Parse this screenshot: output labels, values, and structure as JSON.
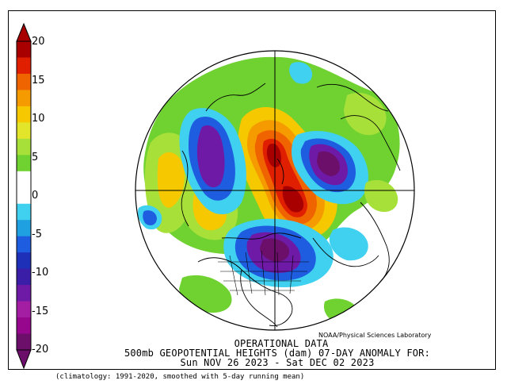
{
  "colorbar": {
    "ticks": [
      "20",
      "15",
      "10",
      "5",
      "0",
      "-5",
      "-10",
      "-15",
      "-20"
    ],
    "colors": [
      "#6b0f6b",
      "#96078e",
      "#a31ea3",
      "#6e1aa6",
      "#3a1ea8",
      "#1e2fb8",
      "#1f5de0",
      "#1fa0e0",
      "#40d0f0",
      "#ffffff",
      "#ffffff",
      "#6fd230",
      "#a8e03a",
      "#e3e52a",
      "#f5c800",
      "#f59b00",
      "#f06400",
      "#e01e00",
      "#a80000"
    ]
  },
  "map": {
    "anomaly_colors": {
      "strong_positive": "#a80000",
      "positive_red": "#e01e00",
      "positive_orange": "#f06400",
      "positive_amber": "#f59b00",
      "positive_yellow": "#f5c800",
      "positive_lime": "#a8e03a",
      "positive_green": "#6fd230",
      "negative_cyan": "#40d0f0",
      "negative_light_blue": "#1fa0e0",
      "negative_blue": "#1f5de0",
      "negative_indigo": "#3a1ea8",
      "negative_violet": "#6e1aa6",
      "strong_negative": "#6b0f6b"
    }
  },
  "credit": "NOAA/Physical Sciences Laboratory",
  "title": {
    "line1": "OPERATIONAL DATA",
    "line2": "500mb GEOPOTENTIAL HEIGHTS (dam)   07-DAY ANOMALY FOR:",
    "line3": "Sun NOV 26 2023 - Sat DEC 02 2023"
  },
  "footnote": "(climatology: 1991-2020, smoothed with 5-day running mean)"
}
